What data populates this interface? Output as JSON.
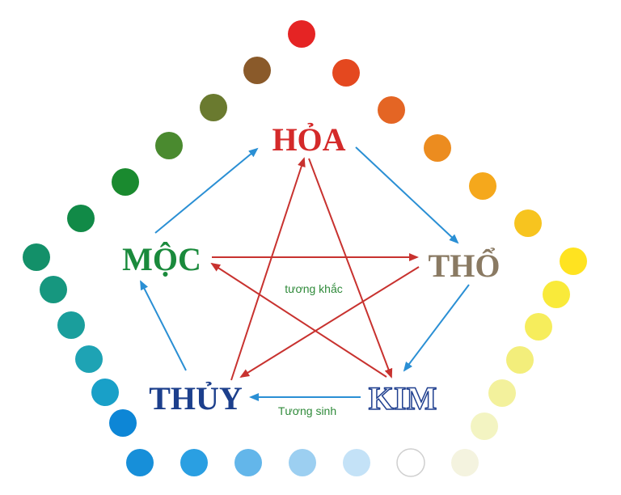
{
  "elements": {
    "hoa": {
      "label": "HỎA",
      "color": "#d42a2a"
    },
    "tho": {
      "label": "THỔ",
      "color": "#8a7a63"
    },
    "kim": {
      "label": "KIM",
      "color": "#ffffff",
      "stroke": "#1f3f8f"
    },
    "thuy": {
      "label": "THỦY",
      "color": "#1c3f8c"
    },
    "moc": {
      "label": "MỘC",
      "color": "#1a8a3c"
    }
  },
  "captions": {
    "tuong_khac": "tương khắc",
    "tuong_sinh": "Tương sinh"
  },
  "colors": {
    "generating_arrow": "#2a8fd4",
    "overcoming_arrow": "#c8322f",
    "caption_text": "#2f8a3a"
  },
  "dots": [
    "#e52424",
    "#e4481f",
    "#e46524",
    "#ec8c1f",
    "#f5a81c",
    "#f7c41f",
    "#ffe320",
    "#f9ea3a",
    "#f6ed5c",
    "#f3ee7b",
    "#f3f19c",
    "#f3f4c2",
    "#f4f3df",
    "#ffffff",
    "#c4e2f7",
    "#9ccff1",
    "#63b6ea",
    "#2a9fe2",
    "#178fd9",
    "#0d86d6",
    "#19a0c8",
    "#1ea3b4",
    "#1a9e9c",
    "#16977f",
    "#139069",
    "#118a47",
    "#1a8a2f",
    "#4a8a2f",
    "#6a7a2f",
    "#8a5a2a",
    "#b24a26",
    "#c83224"
  ]
}
